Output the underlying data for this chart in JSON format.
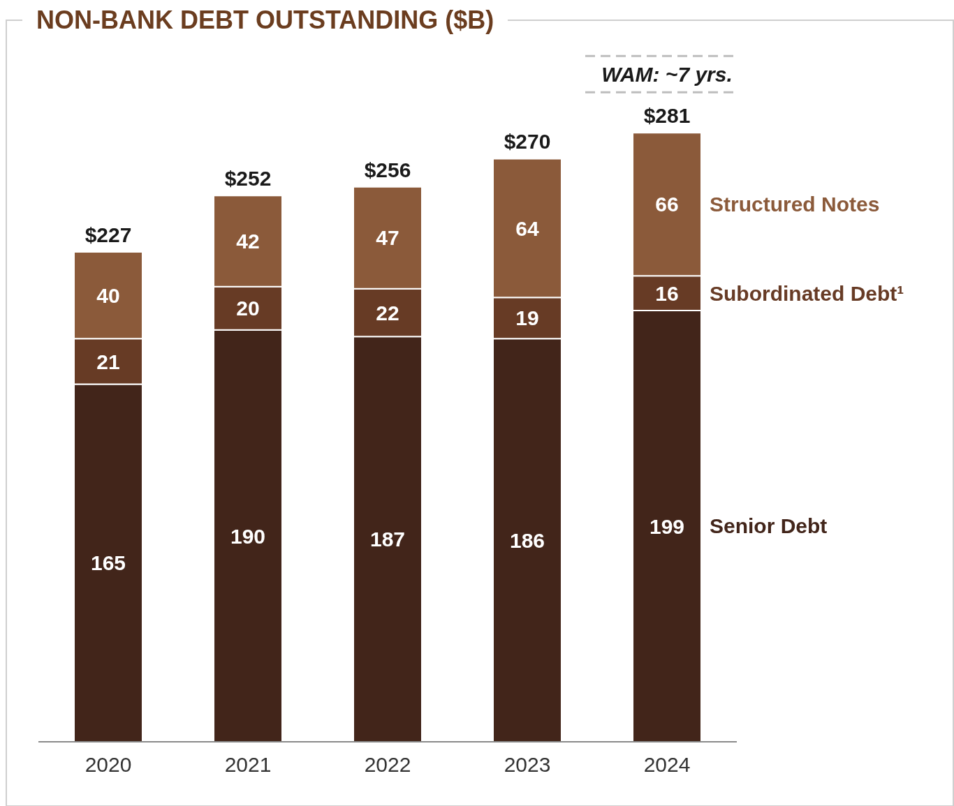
{
  "chart_data": {
    "type": "bar",
    "title": "NON-BANK DEBT OUTSTANDING ($B)",
    "categories": [
      "2020",
      "2021",
      "2022",
      "2023",
      "2024"
    ],
    "stacked": true,
    "data_labels": true,
    "grid": false,
    "legend": false,
    "series": [
      {
        "name": "Senior Debt",
        "color": "#42251a",
        "values": [
          165,
          190,
          187,
          186,
          199
        ]
      },
      {
        "name": "Subordinated Debt¹",
        "color": "#673b25",
        "values": [
          21,
          20,
          22,
          19,
          16
        ]
      },
      {
        "name": "Structured Notes",
        "color": "#8b5a3a",
        "values": [
          40,
          42,
          47,
          64,
          66
        ]
      }
    ],
    "totals": [
      "$227",
      "$252",
      "$256",
      "$270",
      "$281"
    ],
    "annotations": [
      "WAM: ~7 yrs."
    ]
  }
}
